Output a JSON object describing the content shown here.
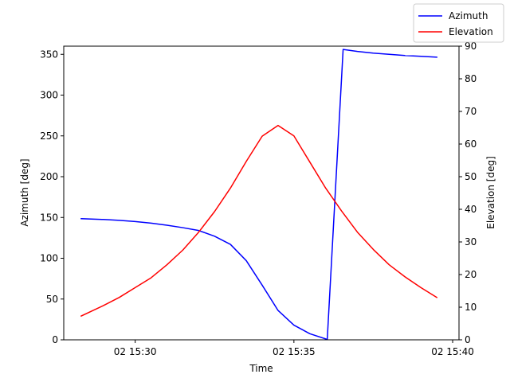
{
  "chart_data": {
    "type": "line",
    "xlabel": "Time",
    "ylabel_left": "Azimuth [deg]",
    "ylabel_right": "Elevation [deg]",
    "x_unit": "minutes after 02 15:00",
    "xlim": [
      27.75,
      40.2
    ],
    "x_ticks": [
      {
        "value": 30,
        "label": "02 15:30"
      },
      {
        "value": 35,
        "label": "02 15:35"
      },
      {
        "value": 40,
        "label": "02 15:40"
      }
    ],
    "ylim_left": [
      0,
      360
    ],
    "yticks_left": [
      0,
      50,
      100,
      150,
      200,
      250,
      300,
      350
    ],
    "ylim_right": [
      0,
      90
    ],
    "yticks_right": [
      0,
      10,
      20,
      30,
      40,
      50,
      60,
      70,
      80,
      90
    ],
    "grid": false,
    "legend_position": "top-right",
    "series": [
      {
        "name": "Azimuth",
        "axis": "left",
        "color": "#0000ff",
        "x": [
          28.3,
          29.0,
          29.5,
          30.0,
          30.5,
          31.0,
          31.5,
          32.0,
          32.5,
          33.0,
          33.5,
          34.0,
          34.5,
          35.0,
          35.5,
          36.05,
          36.55,
          37.0,
          37.5,
          38.0,
          38.5,
          39.0,
          39.5
        ],
        "y": [
          148.5,
          147.5,
          146.5,
          145,
          143,
          140.5,
          137.5,
          134,
          127,
          117,
          97,
          67,
          36,
          18,
          7.5,
          0.5,
          356,
          353.5,
          351.5,
          350,
          348.5,
          347.5,
          346.5
        ]
      },
      {
        "name": "Elevation",
        "axis": "right",
        "color": "#ff0000",
        "x": [
          28.3,
          29.0,
          29.5,
          30.0,
          30.5,
          31.0,
          31.5,
          32.0,
          32.5,
          33.0,
          33.5,
          34.0,
          34.5,
          35.0,
          35.5,
          36.0,
          36.5,
          37.0,
          37.5,
          38.0,
          38.5,
          39.0,
          39.5
        ],
        "y": [
          7.3,
          10.5,
          13,
          16,
          19,
          23,
          27.5,
          33,
          39.3,
          46.5,
          54.7,
          62.4,
          65.7,
          62.5,
          54.5,
          46.5,
          39.5,
          33,
          27.7,
          23,
          19.3,
          16,
          13
        ]
      }
    ]
  }
}
